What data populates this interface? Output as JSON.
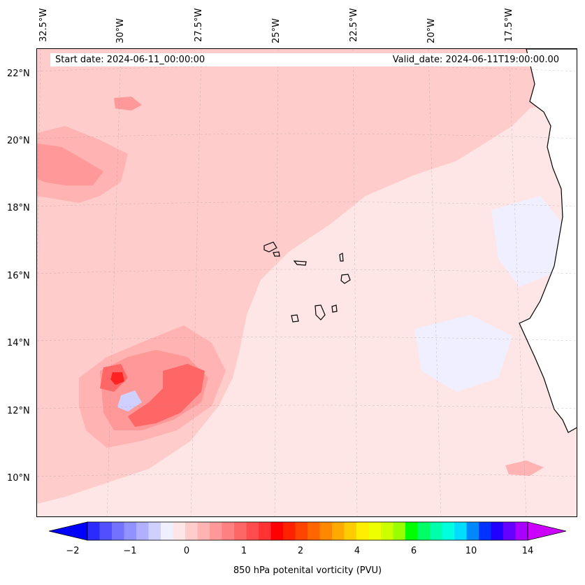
{
  "header": {
    "start_date": "Start date: 2024-06-11_00:00:00",
    "valid_date": "Valid_date: 2024-06-11T19:00:00.00"
  },
  "map": {
    "lon_labels": [
      "32.5°W",
      "30°W",
      "27.5°W",
      "25°W",
      "22.5°W",
      "20°W",
      "17.5°W"
    ],
    "lat_labels": [
      "22°N",
      "20°N",
      "18°N",
      "16°N",
      "14°N",
      "12°N",
      "10°N"
    ],
    "land_color": "#ffffff",
    "coast_color": "#000000"
  },
  "colorbar": {
    "label": "850 hPa potenital vorticity (PVU)",
    "ticks": [
      "−2",
      "−1",
      "0",
      "1",
      "2",
      "4",
      "6",
      "10",
      "14"
    ],
    "colors": [
      "#0000ff",
      "#2b2bff",
      "#5050ff",
      "#7272ff",
      "#9191ff",
      "#b0b0ff",
      "#d0d0ff",
      "#efefff",
      "#ffe6e6",
      "#ffcccc",
      "#ffb3b3",
      "#ff9999",
      "#ff8080",
      "#ff6666",
      "#ff4d4d",
      "#ff3333",
      "#ff0000",
      "#ff2200",
      "#ff4400",
      "#ff6600",
      "#ff8800",
      "#ffaa00",
      "#ffcc00",
      "#ffee00",
      "#eeff00",
      "#ccff00",
      "#99ff00",
      "#00ff00",
      "#00ff66",
      "#00ffaa",
      "#00ffdd",
      "#00ddff",
      "#0088ff",
      "#0033ff",
      "#2200ff",
      "#6600ff",
      "#aa00ff",
      "#cc00ff"
    ]
  }
}
